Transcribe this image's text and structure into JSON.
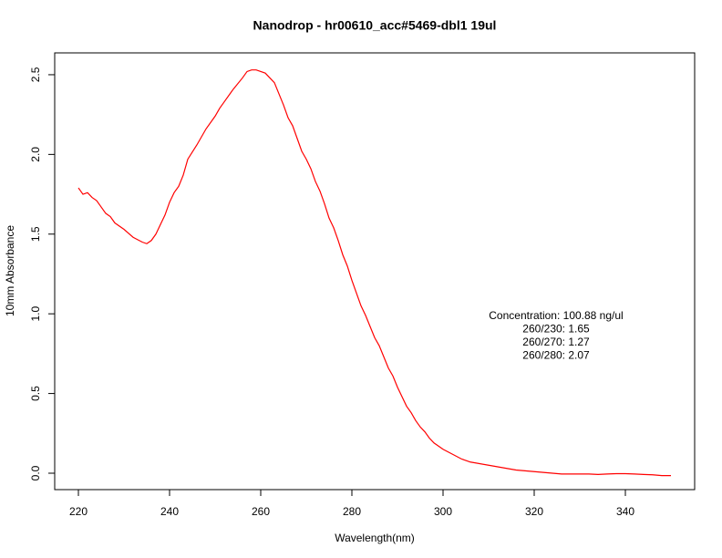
{
  "chart_data": {
    "type": "line",
    "title": "Nanodrop - hr00610_acc#5469-dbl1 19ul",
    "x_label": "Wavelength(nm)",
    "y_label": "10mm Absorbance",
    "annotations": [
      "Concentration: 100.88 ng/ul",
      "260/230: 1.65",
      "260/270: 1.27",
      "260/280: 2.07"
    ],
    "xlim": [
      214.8,
      355.2
    ],
    "ylim": [
      -0.103,
      2.637
    ],
    "xticks": [
      220,
      240,
      260,
      280,
      300,
      320,
      340
    ],
    "yticks": [
      {
        "value": 0,
        "label": "0.0"
      },
      {
        "value": 0.5,
        "label": "0.5"
      },
      {
        "value": 1,
        "label": "1.0"
      },
      {
        "value": 1.5,
        "label": "1.5"
      },
      {
        "value": 2,
        "label": "2.0"
      },
      {
        "value": 2.5,
        "label": "2.5"
      }
    ],
    "x": [
      220,
      221,
      222,
      223,
      224,
      225,
      226,
      227,
      228,
      230,
      232,
      234,
      235,
      236,
      237,
      238,
      239,
      240,
      241,
      242,
      243,
      244,
      246,
      248,
      250,
      251,
      252,
      254,
      256,
      257,
      258,
      259,
      260,
      261,
      262,
      263,
      264,
      265,
      266,
      267,
      268,
      269,
      270,
      271,
      272,
      273,
      274,
      275,
      276,
      277,
      278,
      279,
      280,
      281,
      282,
      283,
      284,
      285,
      286,
      287,
      288,
      289,
      290,
      291,
      292,
      293,
      294,
      295,
      296,
      297,
      298,
      299,
      300,
      302,
      304,
      306,
      308,
      310,
      312,
      314,
      316,
      318,
      320,
      322,
      324,
      326,
      328,
      330,
      332,
      334,
      336,
      338,
      340,
      342,
      344,
      346,
      348,
      350
    ],
    "series": [
      {
        "color": "#ff0000",
        "values": [
          1.79,
          1.75,
          1.76,
          1.73,
          1.71,
          1.67,
          1.63,
          1.61,
          1.57,
          1.53,
          1.48,
          1.45,
          1.44,
          1.46,
          1.5,
          1.56,
          1.62,
          1.7,
          1.76,
          1.8,
          1.87,
          1.97,
          2.06,
          2.16,
          2.24,
          2.29,
          2.33,
          2.41,
          2.48,
          2.52,
          2.53,
          2.53,
          2.52,
          2.51,
          2.48,
          2.45,
          2.38,
          2.31,
          2.23,
          2.18,
          2.1,
          2.02,
          1.97,
          1.91,
          1.83,
          1.77,
          1.69,
          1.6,
          1.54,
          1.46,
          1.37,
          1.3,
          1.21,
          1.13,
          1.05,
          0.99,
          0.92,
          0.85,
          0.8,
          0.73,
          0.66,
          0.61,
          0.54,
          0.48,
          0.42,
          0.38,
          0.33,
          0.29,
          0.26,
          0.22,
          0.19,
          0.17,
          0.15,
          0.12,
          0.09,
          0.07,
          0.06,
          0.05,
          0.04,
          0.03,
          0.02,
          0.015,
          0.01,
          0.005,
          0,
          -0.005,
          -0.005,
          -0.005,
          -0.005,
          -0.008,
          -0.005,
          -0.003,
          -0.003,
          -0.005,
          -0.008,
          -0.01,
          -0.015,
          -0.015
        ]
      }
    ]
  }
}
